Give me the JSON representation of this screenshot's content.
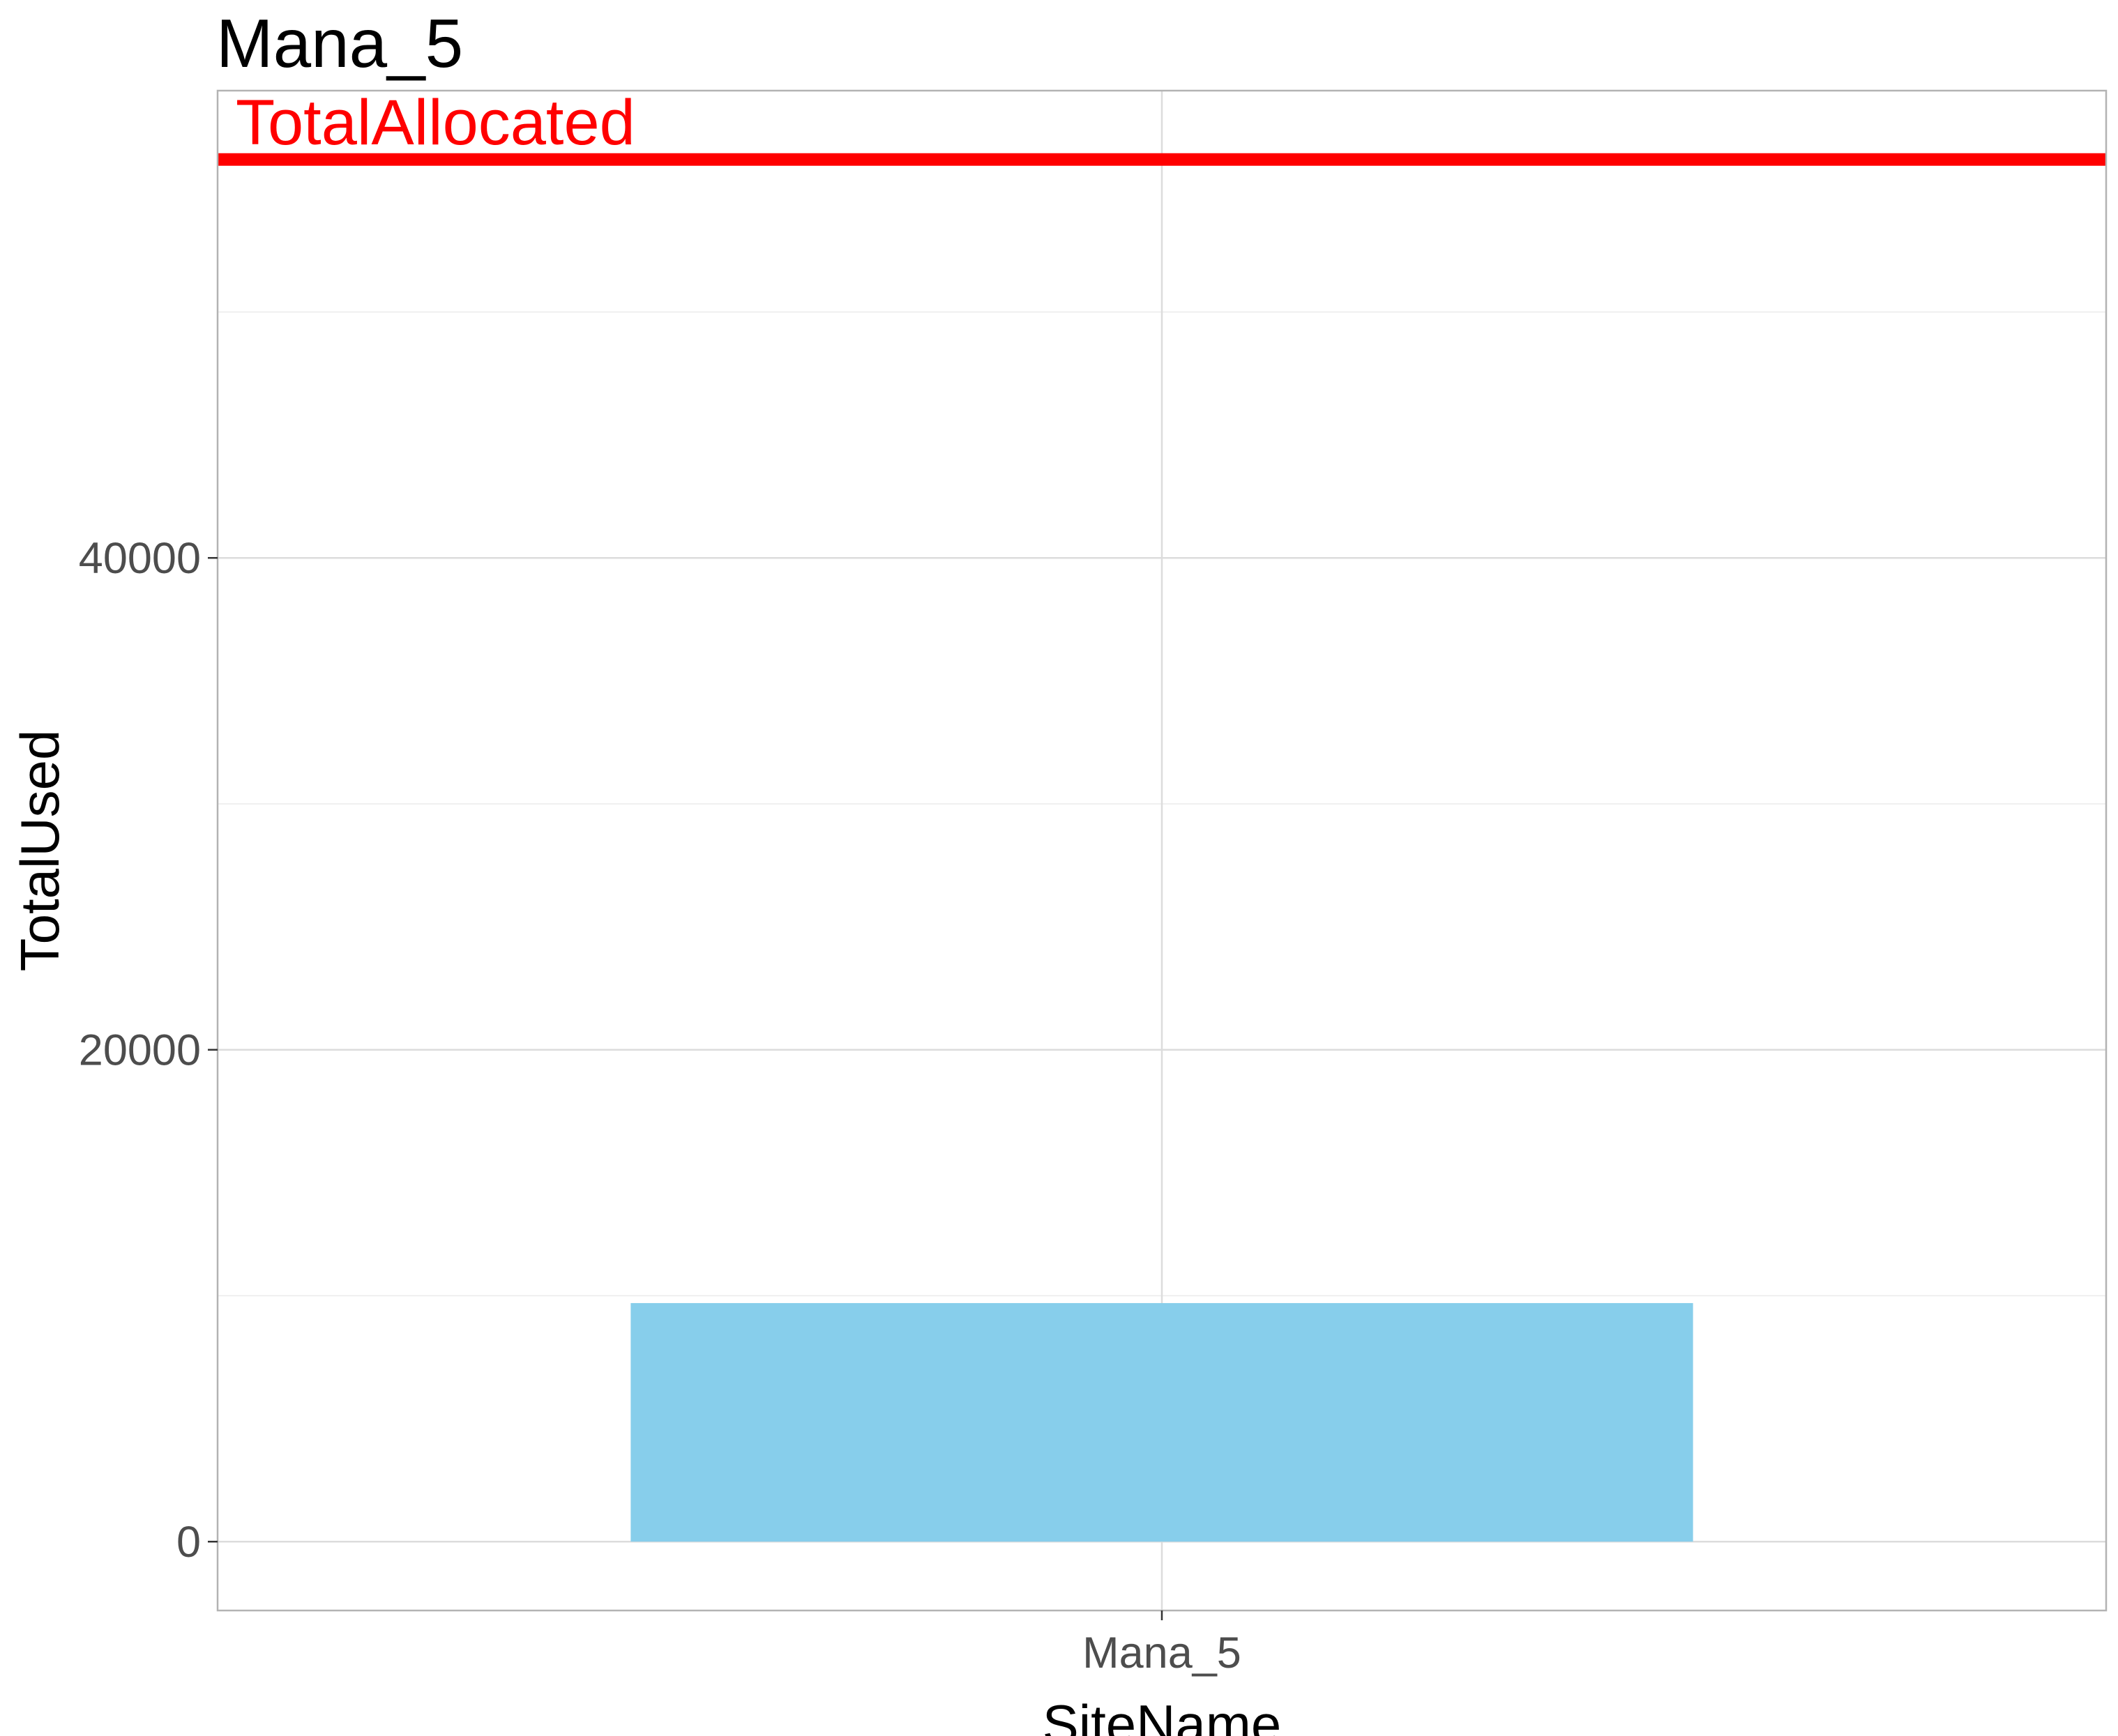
{
  "chart_data": {
    "type": "bar",
    "title": "Mana_5",
    "xlabel": "SiteName",
    "ylabel": "TotalUsed",
    "categories": [
      "Mana_5"
    ],
    "values": [
      9700
    ],
    "bar_color": "#87ceeb",
    "ylim": [
      -2800,
      59000
    ],
    "y_ticks": [
      0,
      20000,
      40000
    ],
    "y_tick_labels": [
      "0",
      "20000",
      "40000"
    ],
    "y_minor_ticks": [
      10000,
      30000,
      50000
    ],
    "grid": true,
    "reference_line": {
      "label": "TotalAllocated",
      "value": 56200,
      "color": "#ff0000"
    }
  }
}
